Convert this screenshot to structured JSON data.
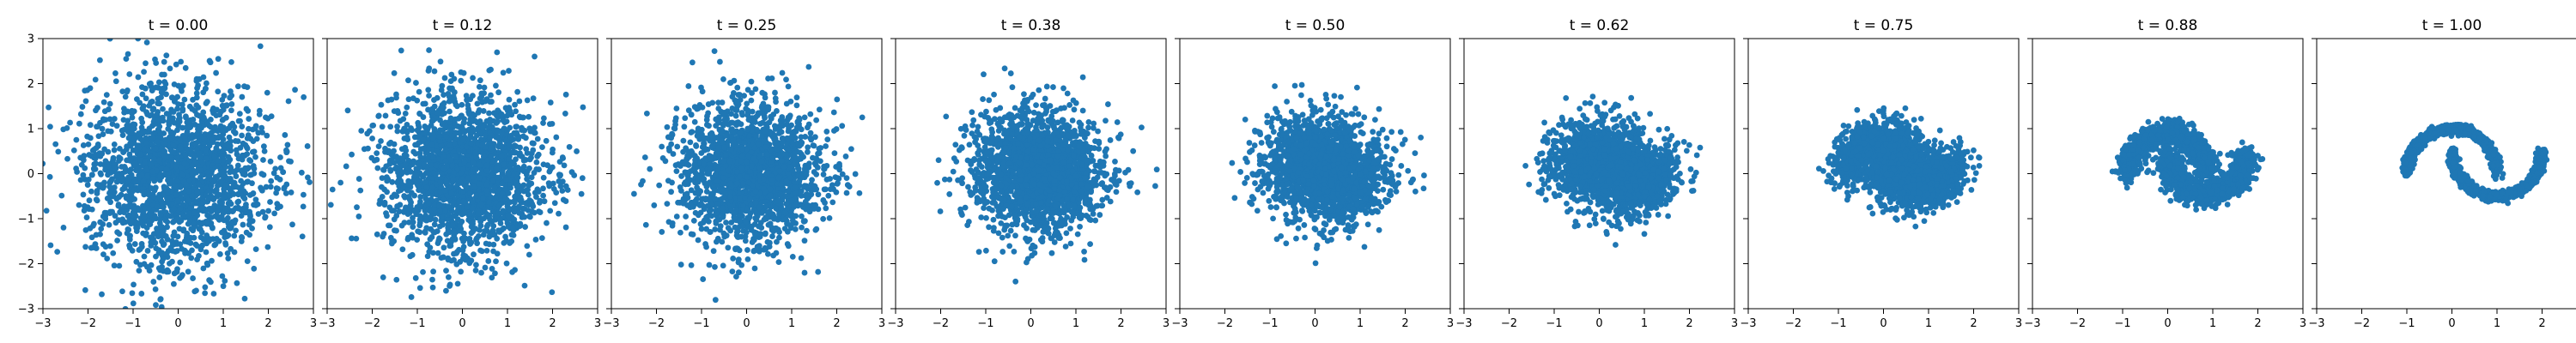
{
  "figure": {
    "point_color": "#1f77b4",
    "background_color": "#ffffff"
  },
  "chart_data": [
    {
      "type": "scatter",
      "title": "t = 0.00",
      "xlim": [
        -3,
        3
      ],
      "ylim": [
        -3,
        3
      ],
      "x_ticks": [
        "−3",
        "−2",
        "−1",
        "0",
        "1",
        "2",
        "3"
      ],
      "y_ticks": [
        "−3",
        "−2",
        "−1",
        "0",
        "1",
        "2",
        "3"
      ],
      "y_tick_labels_visible": true,
      "grid": false,
      "distribution": "isotropic gaussian",
      "spread_std": 1.0,
      "n_points_approx": 2000
    },
    {
      "type": "scatter",
      "title": "t = 0.12",
      "xlim": [
        -3,
        3
      ],
      "ylim": [
        -3,
        3
      ],
      "x_ticks": [
        "−3",
        "−2",
        "−1",
        "0",
        "1",
        "2",
        "3"
      ],
      "y_tick_labels_visible": false,
      "grid": false,
      "distribution": "gaussian blending toward two moons",
      "spread_std": 0.92,
      "n_points_approx": 2000
    },
    {
      "type": "scatter",
      "title": "t = 0.25",
      "xlim": [
        -3,
        3
      ],
      "ylim": [
        -3,
        3
      ],
      "x_ticks": [
        "−3",
        "−2",
        "−1",
        "0",
        "1",
        "2",
        "3"
      ],
      "y_tick_labels_visible": false,
      "grid": false,
      "distribution": "gaussian blending toward two moons",
      "spread_std": 0.82,
      "n_points_approx": 2000
    },
    {
      "type": "scatter",
      "title": "t = 0.38",
      "xlim": [
        -3,
        3
      ],
      "ylim": [
        -3,
        3
      ],
      "x_ticks": [
        "−3",
        "−2",
        "−1",
        "0",
        "1",
        "2",
        "3"
      ],
      "y_tick_labels_visible": false,
      "grid": false,
      "distribution": "gaussian blending toward two moons",
      "spread_std": 0.72,
      "n_points_approx": 2000
    },
    {
      "type": "scatter",
      "title": "t = 0.50",
      "xlim": [
        -3,
        3
      ],
      "ylim": [
        -3,
        3
      ],
      "x_ticks": [
        "−3",
        "−2",
        "−1",
        "0",
        "1",
        "2",
        "3"
      ],
      "y_tick_labels_visible": false,
      "grid": false,
      "distribution": "gaussian blending toward two moons",
      "spread_std": 0.62,
      "n_points_approx": 2000
    },
    {
      "type": "scatter",
      "title": "t = 0.62",
      "xlim": [
        -3,
        3
      ],
      "ylim": [
        -3,
        3
      ],
      "x_ticks": [
        "−3",
        "−2",
        "−1",
        "0",
        "1",
        "2",
        "3"
      ],
      "y_tick_labels_visible": false,
      "grid": false,
      "distribution": "gaussian blending toward two moons",
      "spread_std": 0.5,
      "n_points_approx": 2000
    },
    {
      "type": "scatter",
      "title": "t = 0.75",
      "xlim": [
        -3,
        3
      ],
      "ylim": [
        -3,
        3
      ],
      "x_ticks": [
        "−3",
        "−2",
        "−1",
        "0",
        "1",
        "2",
        "3"
      ],
      "y_tick_labels_visible": false,
      "grid": false,
      "distribution": "gaussian blending toward two moons",
      "spread_std": 0.38,
      "n_points_approx": 2000
    },
    {
      "type": "scatter",
      "title": "t = 0.88",
      "xlim": [
        -3,
        3
      ],
      "ylim": [
        -3,
        3
      ],
      "x_ticks": [
        "−3",
        "−2",
        "−1",
        "0",
        "1",
        "2",
        "3"
      ],
      "y_tick_labels_visible": false,
      "grid": false,
      "distribution": "nearly two moons",
      "spread_std": 0.22,
      "n_points_approx": 2000
    },
    {
      "type": "scatter",
      "title": "t = 1.00",
      "xlim": [
        -3,
        3
      ],
      "ylim": [
        -3,
        3
      ],
      "x_ticks": [
        "−3",
        "−2",
        "−1",
        "0",
        "1",
        "2",
        "3"
      ],
      "y_tick_labels_visible": false,
      "grid": false,
      "distribution": "two interleaved moons",
      "spread_std": 0.0,
      "n_points_approx": 2000
    }
  ]
}
